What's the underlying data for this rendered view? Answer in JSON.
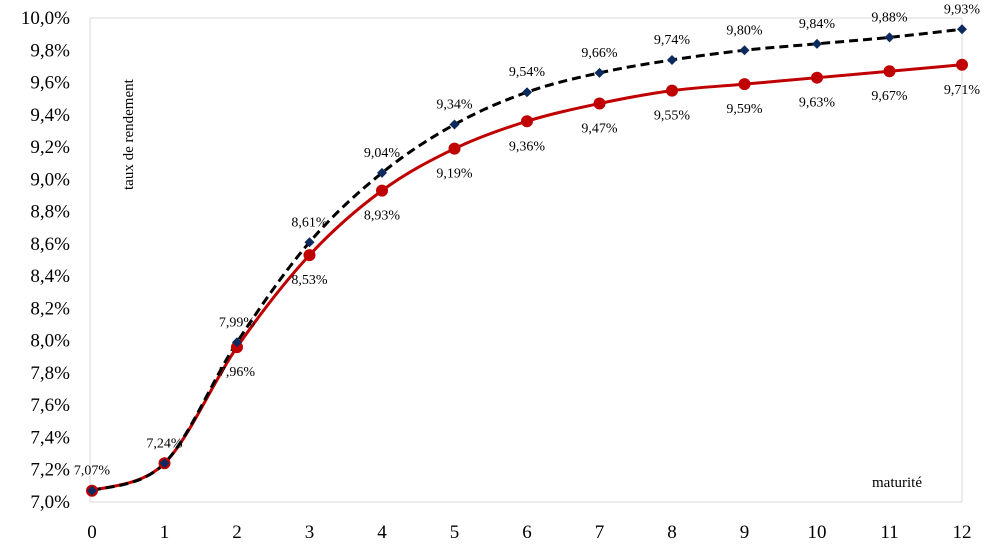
{
  "chart_data": {
    "type": "line",
    "xlabel": "maturité",
    "ylabel": "taux de rendement",
    "x": [
      0,
      1,
      2,
      3,
      4,
      5,
      6,
      7,
      8,
      9,
      10,
      11,
      12
    ],
    "xlim": [
      0,
      12
    ],
    "ylim": [
      7.0,
      10.0
    ],
    "x_tick_labels": [
      "0",
      "1",
      "2",
      "3",
      "4",
      "5",
      "6",
      "7",
      "8",
      "9",
      "10",
      "11",
      "12"
    ],
    "y_tick_labels": [
      "7,0%",
      "7,2%",
      "7,4%",
      "7,6%",
      "7,8%",
      "8,0%",
      "8,2%",
      "8,4%",
      "8,6%",
      "8,8%",
      "9,0%",
      "9,2%",
      "9,4%",
      "9,6%",
      "9,8%",
      "10,0%"
    ],
    "series": [
      {
        "style": "dashed",
        "color": "#000000",
        "marker": "diamond",
        "marker_color": "#0d2a5e",
        "values": [
          7.07,
          7.24,
          7.99,
          8.61,
          9.04,
          9.34,
          9.54,
          9.66,
          9.74,
          9.8,
          9.84,
          9.88,
          9.93
        ],
        "labels": [
          "7,07%",
          "7,24%",
          "7,99%",
          "8,61%",
          "9,04%",
          "9,34%",
          "9,54%",
          "9,66%",
          "9,74%",
          "9,80%",
          "9,84%",
          "9,88%",
          "9,93%"
        ]
      },
      {
        "style": "solid",
        "color": "#c00000",
        "marker": "circle",
        "marker_color": "#c00000",
        "values": [
          7.07,
          7.24,
          7.96,
          8.53,
          8.93,
          9.19,
          9.36,
          9.47,
          9.55,
          9.59,
          9.63,
          9.67,
          9.71
        ],
        "labels": [
          "",
          "",
          "7,96%",
          "8,53%",
          "8,93%",
          "9,19%",
          "9,36%",
          "9,47%",
          "9,55%",
          "9,59%",
          "9,63%",
          "9,67%",
          "9,71%"
        ]
      }
    ],
    "grid": false,
    "legend": "none"
  }
}
